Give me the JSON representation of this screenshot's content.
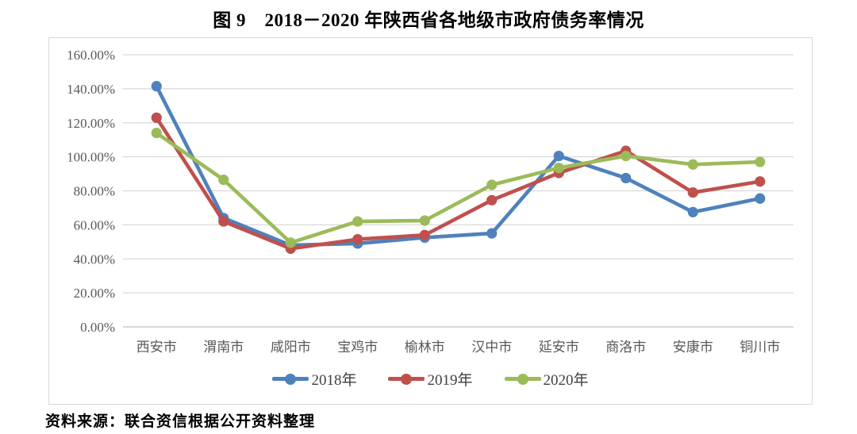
{
  "title": "图 9　2018－2020 年陕西省各地级市政府债务率情况",
  "source": "资料来源：联合资信根据公开资料整理",
  "colors": {
    "series_2018": "#4F81BD",
    "series_2019": "#C0504D",
    "series_2020": "#9BBB59",
    "gridline": "#D9D9D9",
    "axis_line": "#BFBFBF",
    "axis_text": "#595959",
    "frame_border": "#D8D8D8"
  },
  "chart_data": {
    "type": "line",
    "title": "图 9　2018－2020 年陕西省各地级市政府债务率情况",
    "categories": [
      "西安市",
      "渭南市",
      "咸阳市",
      "宝鸡市",
      "榆林市",
      "汉中市",
      "延安市",
      "商洛市",
      "安康市",
      "铜川市"
    ],
    "series": [
      {
        "name": "2018年",
        "color": "#4F81BD",
        "values": [
          141.5,
          64.0,
          48.0,
          49.0,
          52.5,
          55.0,
          100.5,
          87.5,
          67.5,
          75.5
        ]
      },
      {
        "name": "2019年",
        "color": "#C0504D",
        "values": [
          123.0,
          62.0,
          46.0,
          51.5,
          54.0,
          74.5,
          90.5,
          103.5,
          79.0,
          85.5
        ]
      },
      {
        "name": "2020年",
        "color": "#9BBB59",
        "values": [
          114.0,
          86.5,
          49.5,
          62.0,
          62.5,
          83.5,
          93.5,
          100.5,
          95.5,
          97.0
        ]
      }
    ],
    "xlabel": "",
    "ylabel": "",
    "ylim": [
      0,
      160
    ],
    "y_tick_step": 20,
    "y_tick_labels": [
      "0.00%",
      "20.00%",
      "40.00%",
      "60.00%",
      "80.00%",
      "100.00%",
      "120.00%",
      "140.00%",
      "160.00%"
    ],
    "grid": true,
    "legend_position": "bottom",
    "unit": "percent"
  }
}
